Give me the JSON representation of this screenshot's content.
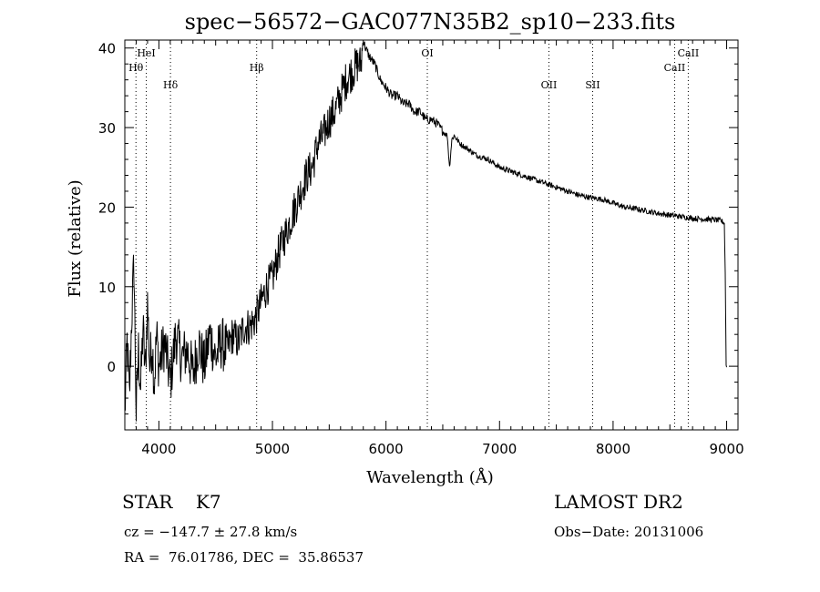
{
  "chart_data": {
    "type": "line",
    "title": "spec−56572−GAC077N35B2_sp10−233.fits",
    "xlabel": "Wavelength (Å)",
    "ylabel": "Flux (relative)",
    "xlim": [
      3700,
      9100
    ],
    "ylim": [
      -8,
      41
    ],
    "xticks": [
      4000,
      5000,
      6000,
      7000,
      8000,
      9000
    ],
    "yticks": [
      0,
      10,
      20,
      30,
      40
    ],
    "grid": false,
    "series": [
      {
        "x": [
          3700,
          3720,
          3740,
          3760,
          3780,
          3800,
          3820,
          3840,
          3860,
          3880,
          3900,
          3920,
          3940,
          3960,
          3980,
          4000,
          4050,
          4100,
          4150,
          4200,
          4250,
          4300,
          4350,
          4400,
          4450,
          4500,
          4550,
          4600,
          4650,
          4700,
          4750,
          4800,
          4850,
          4900,
          4950,
          5000,
          5050,
          5100,
          5150,
          5200,
          5250,
          5300,
          5350,
          5400,
          5450,
          5500,
          5550,
          5600,
          5650,
          5700,
          5750,
          5780,
          5800,
          5820,
          5850,
          5900,
          5950,
          6000,
          6050,
          6100,
          6150,
          6200,
          6250,
          6300,
          6350,
          6400,
          6450,
          6500,
          6540,
          6560,
          6580,
          6600,
          6650,
          6700,
          6750,
          6800,
          6900,
          7000,
          7100,
          7200,
          7300,
          7400,
          7500,
          7600,
          7700,
          7800,
          7900,
          8000,
          8100,
          8200,
          8300,
          8400,
          8500,
          8600,
          8700,
          8800,
          8900,
          8950,
          8980,
          8990,
          8995,
          9000
        ],
        "y": [
          -6,
          3,
          -4,
          6,
          13,
          -6,
          2,
          -3,
          5,
          -1,
          8,
          0,
          3,
          -2,
          4,
          0,
          3,
          -2,
          4,
          1,
          2,
          -1,
          3,
          0,
          4,
          1,
          3,
          2,
          4,
          3,
          5,
          5,
          6,
          8,
          10,
          11,
          14,
          16,
          18,
          20,
          22,
          24,
          25,
          28,
          29,
          31,
          32,
          34,
          36,
          37,
          38,
          38,
          41,
          40,
          39,
          38,
          36,
          35,
          34,
          34,
          33,
          33,
          32,
          32,
          31,
          31,
          30.5,
          29.5,
          29,
          25,
          28.5,
          29,
          28,
          27.5,
          27,
          26.5,
          26,
          25,
          24.5,
          24,
          23.5,
          23,
          22.5,
          22,
          21.5,
          21.2,
          21,
          20.5,
          20,
          19.8,
          19.5,
          19.2,
          19,
          18.8,
          18.6,
          18.5,
          18.4,
          18.3,
          18,
          10,
          0,
          0
        ]
      }
    ],
    "lines": [
      {
        "label": "HeI",
        "x": 3889,
        "row": 1
      },
      {
        "label": "Hθ",
        "x": 3798,
        "row": 2
      },
      {
        "label": "Hδ",
        "x": 4102,
        "row": 3
      },
      {
        "label": "Hβ",
        "x": 4861,
        "row": 2
      },
      {
        "label": "OI",
        "x": 6364,
        "row": 1
      },
      {
        "label": "OII",
        "x": 7435,
        "row": 3
      },
      {
        "label": "SII",
        "x": 7820,
        "row": 3
      },
      {
        "label": "CaII",
        "x": 8662,
        "row": 1
      },
      {
        "label": "CaII",
        "x": 8542,
        "row": 2
      }
    ]
  },
  "info": {
    "class": "STAR    K7",
    "survey": "LAMOST DR2",
    "cz": "cz = −147.7 ± 27.8 km/s",
    "obsdate": "Obs−Date: 20131006",
    "coords": "RA =  76.01786, DEC =  35.86537"
  }
}
